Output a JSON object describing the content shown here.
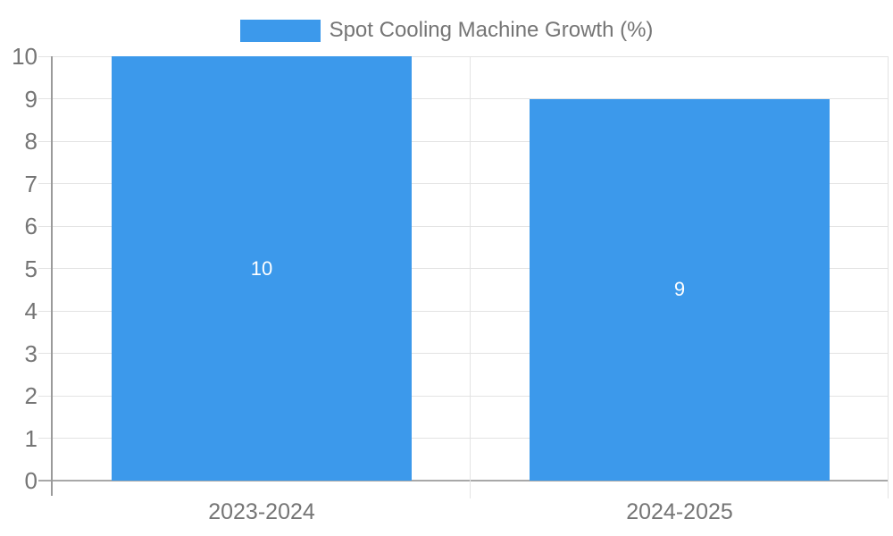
{
  "legend": {
    "label": "Spot Cooling Machine Growth (%)"
  },
  "chart_data": {
    "type": "bar",
    "title": "Spot Cooling Machine Growth (%)",
    "categories": [
      "2023-2024",
      "2024-2025"
    ],
    "values": [
      10,
      9
    ],
    "value_labels": [
      "10",
      "9"
    ],
    "xlabel": "",
    "ylabel": "",
    "ylim": [
      0,
      10
    ],
    "yticks": [
      0,
      1,
      2,
      3,
      4,
      5,
      6,
      7,
      8,
      9,
      10
    ],
    "grid": true,
    "legend_position": "top-center",
    "colors": {
      "bar": "#3c99eb",
      "grid_line": "#e3e3e3",
      "axis_line": "#9a9a9a",
      "baseline": "#a8a8a8",
      "tick_label": "#757575",
      "bar_value_label": "#ffffff",
      "background": "#ffffff"
    }
  }
}
